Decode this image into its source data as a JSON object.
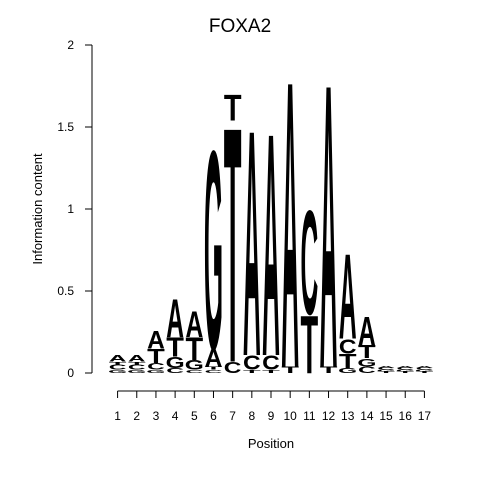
{
  "chart_data": {
    "type": "sequence-logo",
    "title": "FOXA2",
    "xlabel": "Position",
    "ylabel": "Information content",
    "ylim": [
      0,
      2
    ],
    "yticks": [
      "0",
      "0.5",
      "1",
      "1.5",
      "2"
    ],
    "positions": [
      "1",
      "2",
      "3",
      "4",
      "5",
      "6",
      "7",
      "8",
      "9",
      "10",
      "11",
      "12",
      "13",
      "14",
      "15",
      "16",
      "17"
    ],
    "colors": {
      "A": "#00ee00",
      "C": "#0000ee",
      "G": "#ffa500",
      "T": "#ff0000"
    },
    "stacks": [
      [
        {
          "l": "G",
          "h": 0.02
        },
        {
          "l": "C",
          "h": 0.03
        },
        {
          "l": "T",
          "h": 0.02
        },
        {
          "l": "A",
          "h": 0.04
        }
      ],
      [
        {
          "l": "G",
          "h": 0.02
        },
        {
          "l": "C",
          "h": 0.03
        },
        {
          "l": "T",
          "h": 0.02
        },
        {
          "l": "A",
          "h": 0.04
        }
      ],
      [
        {
          "l": "G",
          "h": 0.02
        },
        {
          "l": "C",
          "h": 0.04
        },
        {
          "l": "T",
          "h": 0.09
        },
        {
          "l": "A",
          "h": 0.11
        }
      ],
      [
        {
          "l": "C",
          "h": 0.03
        },
        {
          "l": "G",
          "h": 0.07
        },
        {
          "l": "T",
          "h": 0.12
        },
        {
          "l": "A",
          "h": 0.24
        }
      ],
      [
        {
          "l": "C",
          "h": 0.02
        },
        {
          "l": "G",
          "h": 0.06
        },
        {
          "l": "T",
          "h": 0.14
        },
        {
          "l": "A",
          "h": 0.16
        }
      ],
      [
        {
          "l": "C",
          "h": 0.02
        },
        {
          "l": "T",
          "h": 0.02
        },
        {
          "l": "A",
          "h": 0.11
        },
        {
          "l": "G",
          "h": 1.24
        }
      ],
      [
        {
          "l": "C",
          "h": 0.07
        },
        {
          "l": "T",
          "h": 1.47
        },
        {
          "l": "A",
          "h": 0
        },
        {
          "l": "T",
          "h": 0.16
        }
      ],
      [
        {
          "l": "T",
          "h": 0.02
        },
        {
          "l": "C",
          "h": 0.09
        },
        {
          "l": "A",
          "h": 1.41
        }
      ],
      [
        {
          "l": "T",
          "h": 0.02
        },
        {
          "l": "C",
          "h": 0.09
        },
        {
          "l": "A",
          "h": 1.39
        }
      ],
      [
        {
          "l": "T",
          "h": 0.04
        },
        {
          "l": "A",
          "h": 1.79
        }
      ],
      [
        {
          "l": "T",
          "h": 0.36
        },
        {
          "l": "C",
          "h": 0.65
        }
      ],
      [
        {
          "l": "T",
          "h": 0.04
        },
        {
          "l": "A",
          "h": 1.77
        }
      ],
      [
        {
          "l": "G",
          "h": 0.03
        },
        {
          "l": "T",
          "h": 0.09
        },
        {
          "l": "C",
          "h": 0.09
        },
        {
          "l": "A",
          "h": 0.53
        }
      ],
      [
        {
          "l": "C",
          "h": 0.04
        },
        {
          "l": "G",
          "h": 0.05
        },
        {
          "l": "T",
          "h": 0.08
        },
        {
          "l": "A",
          "h": 0.18
        }
      ],
      [
        {
          "l": "T",
          "h": 0.01
        },
        {
          "l": "G",
          "h": 0.01
        },
        {
          "l": "C",
          "h": 0.01
        },
        {
          "l": "A",
          "h": 0.01
        }
      ],
      [
        {
          "l": "T",
          "h": 0.01
        },
        {
          "l": "G",
          "h": 0.01
        },
        {
          "l": "C",
          "h": 0.01
        },
        {
          "l": "A",
          "h": 0.01
        }
      ],
      [
        {
          "l": "T",
          "h": 0.01
        },
        {
          "l": "G",
          "h": 0.01
        },
        {
          "l": "C",
          "h": 0.01
        },
        {
          "l": "A",
          "h": 0.01
        }
      ]
    ]
  }
}
